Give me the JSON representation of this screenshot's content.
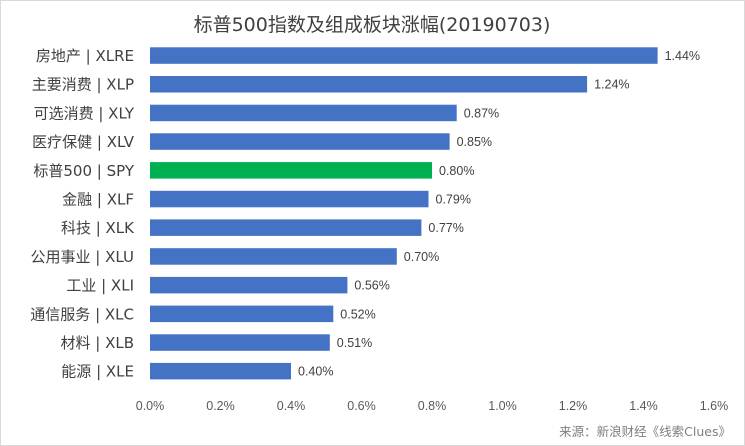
{
  "chart_data": {
    "type": "bar",
    "orientation": "horizontal",
    "title": "标普500指数及组成板块涨幅(20190703)",
    "categories": [
      "房地产 | XLRE",
      "主要消费 | XLP",
      "可选消费 | XLY",
      "医疗保健 | XLV",
      "标普500 | SPY",
      "金融 | XLF",
      "科技 | XLK",
      "公用事业 | XLU",
      "工业 | XLI",
      "通信服务 | XLC",
      "材料 | XLB",
      "能源 | XLE"
    ],
    "values": [
      1.44,
      1.24,
      0.87,
      0.85,
      0.8,
      0.79,
      0.77,
      0.7,
      0.56,
      0.52,
      0.51,
      0.4
    ],
    "value_labels": [
      "1.44%",
      "1.24%",
      "0.87%",
      "0.85%",
      "0.80%",
      "0.79%",
      "0.77%",
      "0.70%",
      "0.56%",
      "0.52%",
      "0.51%",
      "0.40%"
    ],
    "xlim": [
      0,
      1.6
    ],
    "xticks": [
      0,
      0.2,
      0.4,
      0.6,
      0.8,
      1.0,
      1.2,
      1.4,
      1.6
    ],
    "xtick_labels": [
      "0.0%",
      "0.2%",
      "0.4%",
      "0.6%",
      "0.8%",
      "1.0%",
      "1.2%",
      "1.4%",
      "1.6%"
    ],
    "grid": false,
    "legend": "none",
    "colors": {
      "bar": "#4472c4",
      "highlight": "#00b050"
    },
    "highlight_category": "标普500 | SPY",
    "source": "来源：新浪财经《线索Clues》"
  }
}
